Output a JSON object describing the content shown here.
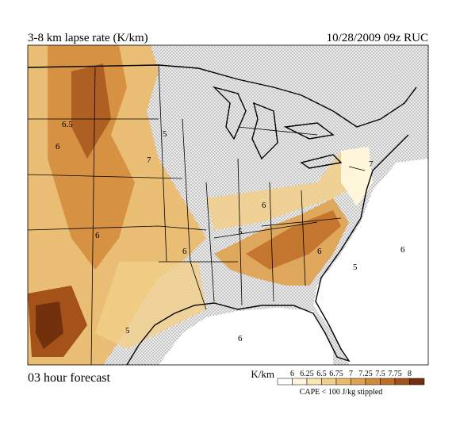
{
  "header": {
    "title": "3-8 km lapse rate (K/km)",
    "run": "10/28/2009  09z  RUC"
  },
  "footer": {
    "forecast": "03 hour forecast",
    "note": "CAPE < 100 J/kg stippled"
  },
  "legend": {
    "unit": "K/km",
    "levels": [
      {
        "label": 6,
        "color": "#fff6dc"
      },
      {
        "label": 6.25,
        "color": "#fbe6b0"
      },
      {
        "label": 6.5,
        "color": "#f3d08a"
      },
      {
        "label": 6.75,
        "color": "#ebba68"
      },
      {
        "label": 7,
        "color": "#e0a24e"
      },
      {
        "label": 7.25,
        "color": "#d28a3a"
      },
      {
        "label": 7.5,
        "color": "#bf6e28"
      },
      {
        "label": 7.75,
        "color": "#a4521a"
      },
      {
        "label": 8,
        "color": "#73300c"
      }
    ]
  },
  "map": {
    "contour_labels": [
      "6.5",
      "6",
      "7",
      "5",
      "6",
      "6",
      "5",
      "6",
      "6",
      "5",
      "6",
      "5",
      "6",
      "7"
    ]
  }
}
